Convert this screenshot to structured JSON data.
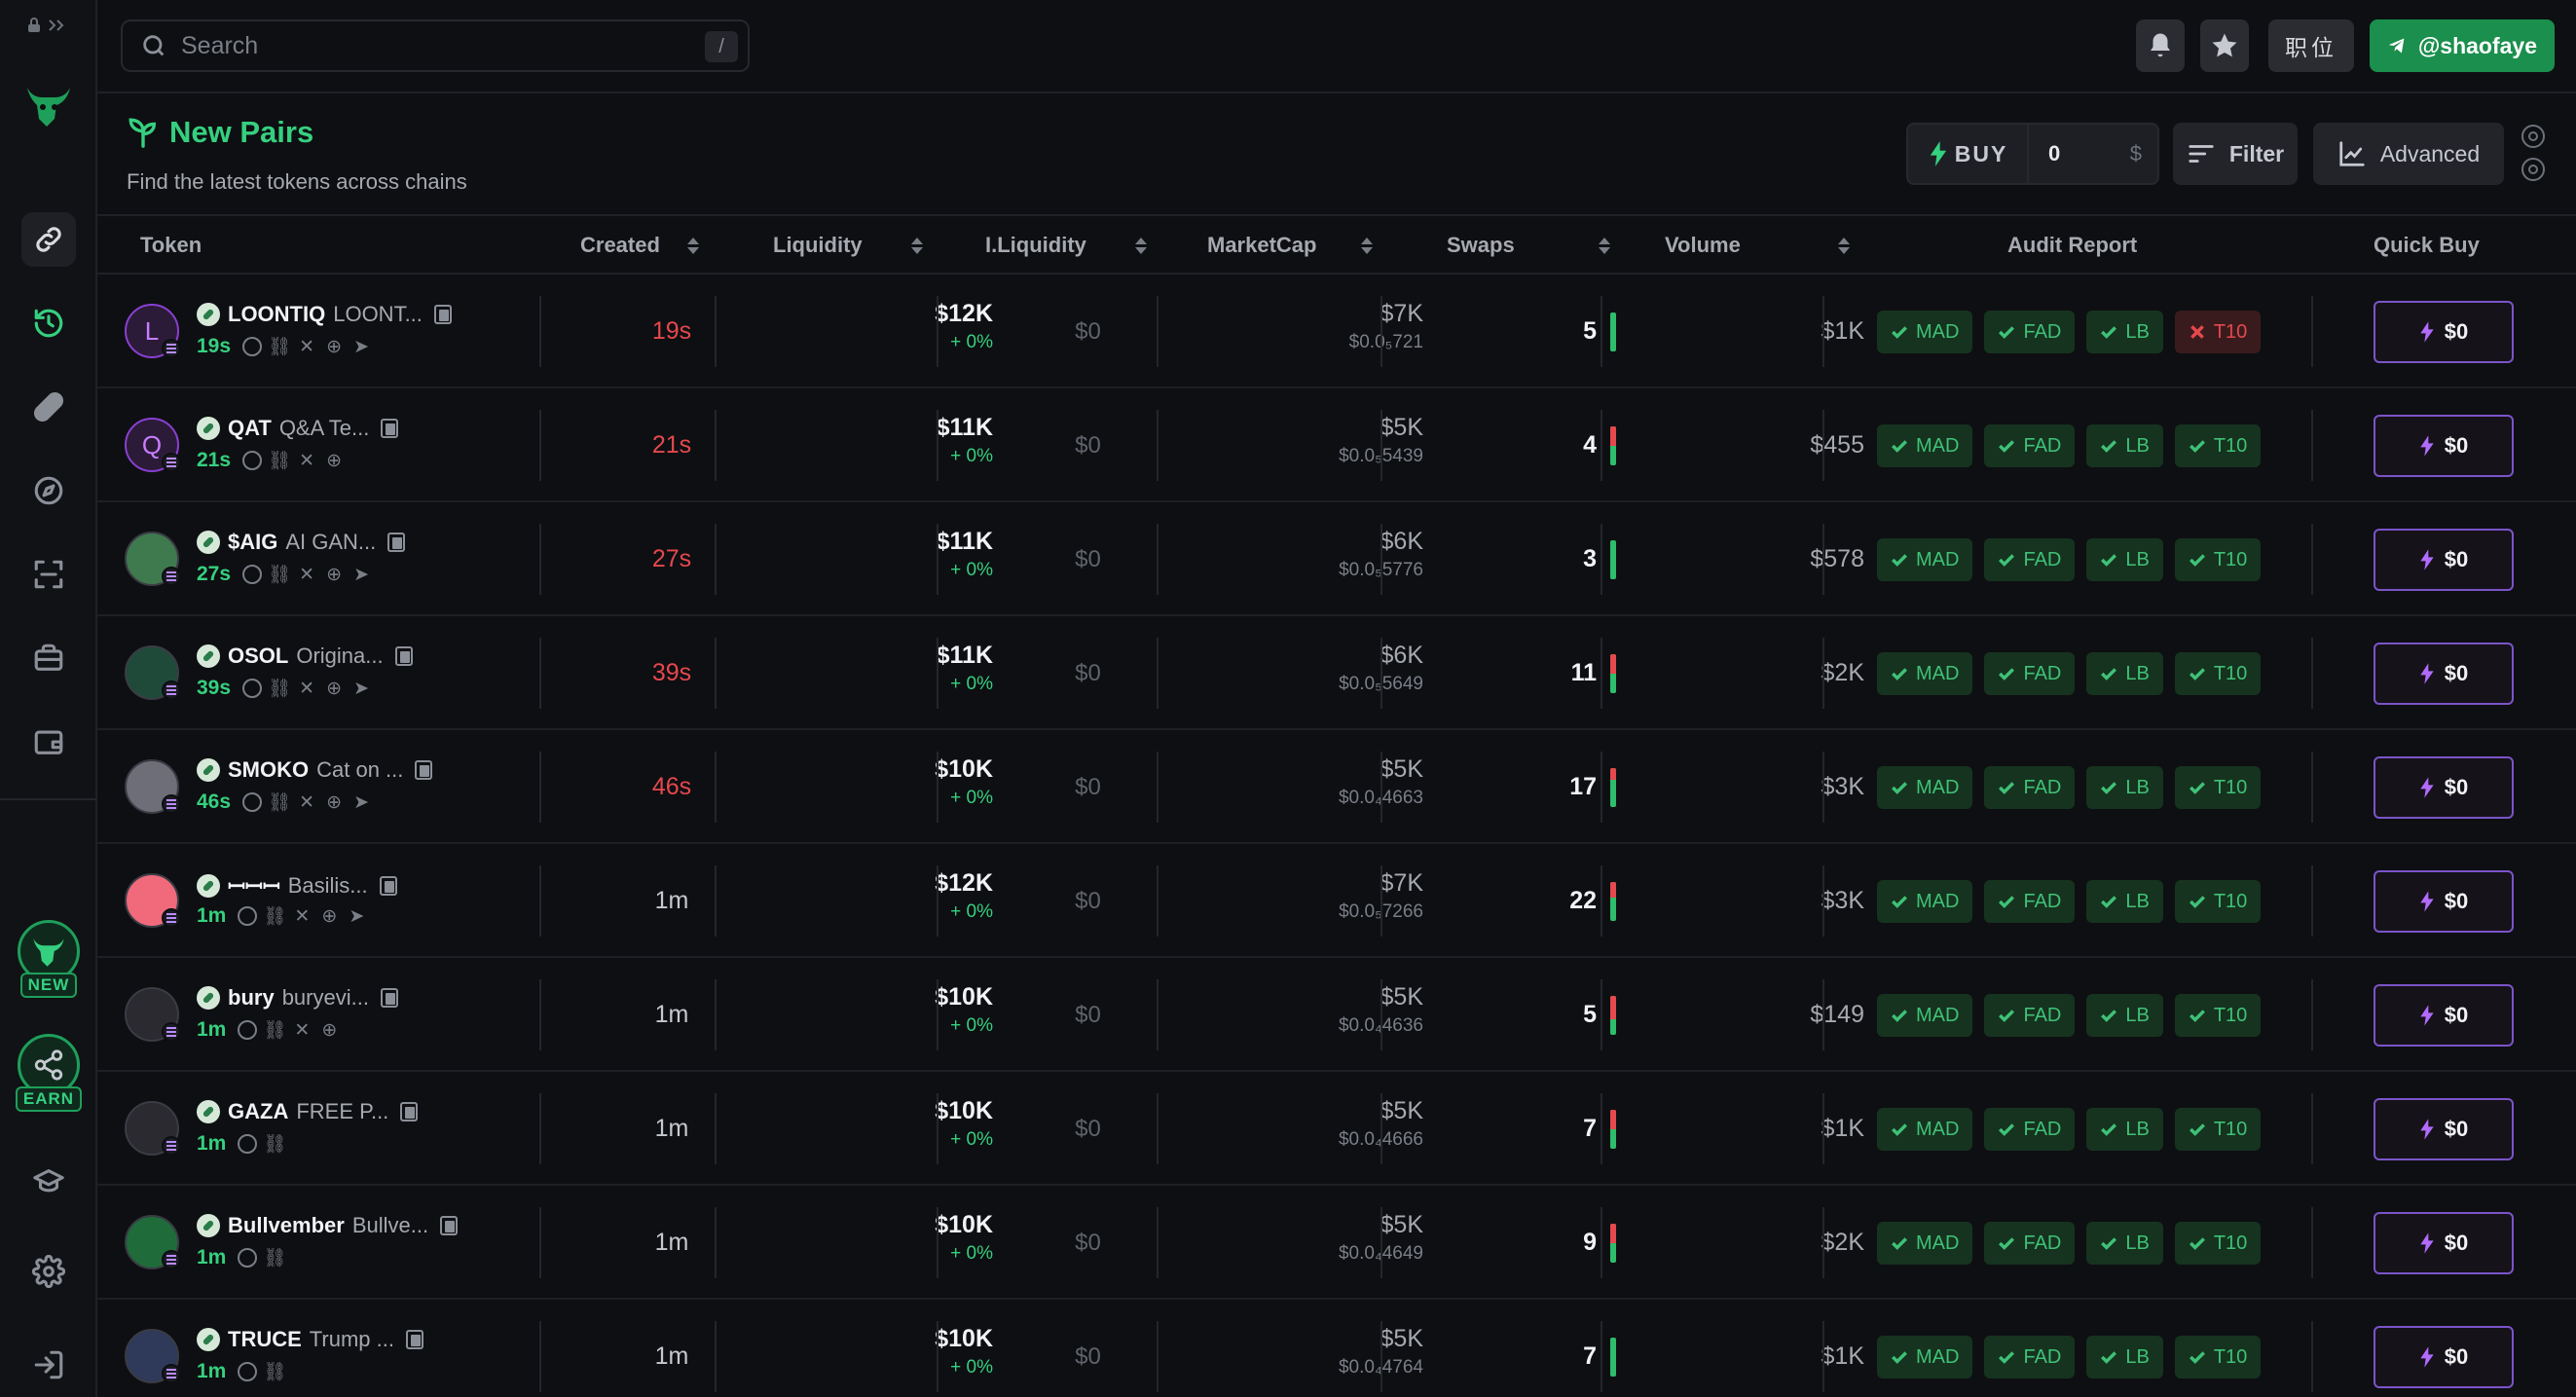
{
  "search": {
    "placeholder": "Search",
    "shortcut": "/"
  },
  "topbar": {
    "lang_label": "职位",
    "telegram_handle": "@shaofaye"
  },
  "page": {
    "title": "New Pairs",
    "subtitle": "Find the latest tokens across chains"
  },
  "controls": {
    "buy_label": "BUY",
    "buy_amount": "0",
    "currency": "$",
    "filter_label": "Filter",
    "advanced_label": "Advanced"
  },
  "sidebar": {
    "new_badge": "NEW",
    "earn_badge": "EARN"
  },
  "columns": {
    "token": "Token",
    "created": "Created",
    "liquidity": "Liquidity",
    "iliquidity": "I.Liquidity",
    "marketcap": "MarketCap",
    "swaps": "Swaps",
    "volume": "Volume",
    "audit": "Audit Report",
    "quickbuy": "Quick Buy"
  },
  "colors": {
    "accent": "#35d07f",
    "created_new": "#e5484d",
    "quick_buy_border": "#7b54c9"
  },
  "audit_labels": [
    "MAD",
    "FAD",
    "LB",
    "T10"
  ],
  "rows": [
    {
      "symbol": "LOONTIQ",
      "name": "LOONT...",
      "avatar_letter": "L",
      "avatar_bg": "#2b1b38",
      "age": "19s",
      "socials": [
        "target",
        "link",
        "x",
        "web",
        "tg"
      ],
      "created": "19s",
      "created_recent": true,
      "liquidity": "$12K",
      "liq_change": "+ 0%",
      "iliquidity": "$0",
      "marketcap": "$7K",
      "price": "$0.0₅721",
      "swaps": "5",
      "sell_ratio": 0.0,
      "volume": "$1K",
      "audit_fail": [
        3
      ],
      "quick_buy": "$0"
    },
    {
      "symbol": "QAT",
      "name": "Q&A Te...",
      "avatar_letter": "Q",
      "avatar_bg": "#2b1b38",
      "age": "21s",
      "socials": [
        "target",
        "link",
        "x",
        "web"
      ],
      "created": "21s",
      "created_recent": true,
      "liquidity": "$11K",
      "liq_change": "+ 0%",
      "iliquidity": "$0",
      "marketcap": "$5K",
      "price": "$0.0₅5439",
      "swaps": "4",
      "sell_ratio": 0.5,
      "volume": "$455",
      "audit_fail": [],
      "quick_buy": "$0"
    },
    {
      "symbol": "$AIG",
      "name": "AI GAN...",
      "avatar_letter": "",
      "avatar_bg": "#3f7a4f",
      "age": "27s",
      "socials": [
        "target",
        "link",
        "x",
        "web",
        "tg"
      ],
      "created": "27s",
      "created_recent": true,
      "liquidity": "$11K",
      "liq_change": "+ 0%",
      "iliquidity": "$0",
      "marketcap": "$6K",
      "price": "$0.0₅5776",
      "swaps": "3",
      "sell_ratio": 0.0,
      "volume": "$578",
      "audit_fail": [],
      "quick_buy": "$0"
    },
    {
      "symbol": "OSOL",
      "name": "Origina...",
      "avatar_letter": "",
      "avatar_bg": "#1f4a3a",
      "age": "39s",
      "socials": [
        "target",
        "link",
        "x",
        "web",
        "tg"
      ],
      "created": "39s",
      "created_recent": true,
      "liquidity": "$11K",
      "liq_change": "+ 0%",
      "iliquidity": "$0",
      "marketcap": "$6K",
      "price": "$0.0₅5649",
      "swaps": "11",
      "sell_ratio": 0.5,
      "volume": "$2K",
      "audit_fail": [],
      "quick_buy": "$0"
    },
    {
      "symbol": "SMOKO",
      "name": "Cat on ...",
      "avatar_letter": "",
      "avatar_bg": "#6e6e78",
      "age": "46s",
      "socials": [
        "target",
        "link",
        "x",
        "web",
        "tg"
      ],
      "created": "46s",
      "created_recent": true,
      "liquidity": "$10K",
      "liq_change": "+ 0%",
      "iliquidity": "$0",
      "marketcap": "$5K",
      "price": "$0.0₄4663",
      "swaps": "17",
      "sell_ratio": 0.3,
      "volume": "$3K",
      "audit_fail": [],
      "quick_buy": "$0"
    },
    {
      "symbol": "ꟷꟷꟷ",
      "name": "Basilis...",
      "avatar_letter": "",
      "avatar_bg": "#f06a7c",
      "age": "1m",
      "socials": [
        "target",
        "link",
        "x",
        "web",
        "tg"
      ],
      "created": "1m",
      "created_recent": false,
      "liquidity": "$12K",
      "liq_change": "+ 0%",
      "iliquidity": "$0",
      "marketcap": "$7K",
      "price": "$0.0₅7266",
      "swaps": "22",
      "sell_ratio": 0.4,
      "volume": "$3K",
      "audit_fail": [],
      "quick_buy": "$0"
    },
    {
      "symbol": "bury",
      "name": "buryevi...",
      "avatar_letter": "",
      "avatar_bg": "#2a2a30",
      "age": "1m",
      "socials": [
        "target",
        "link",
        "x",
        "web"
      ],
      "created": "1m",
      "created_recent": false,
      "liquidity": "$10K",
      "liq_change": "+ 0%",
      "iliquidity": "$0",
      "marketcap": "$5K",
      "price": "$0.0₄4636",
      "swaps": "5",
      "sell_ratio": 0.6,
      "volume": "$149",
      "audit_fail": [],
      "quick_buy": "$0"
    },
    {
      "symbol": "GAZA",
      "name": "FREE P...",
      "avatar_letter": "",
      "avatar_bg": "#2a2a30",
      "age": "1m",
      "socials": [
        "target",
        "link"
      ],
      "created": "1m",
      "created_recent": false,
      "liquidity": "$10K",
      "liq_change": "+ 0%",
      "iliquidity": "$0",
      "marketcap": "$5K",
      "price": "$0.0₄4666",
      "swaps": "7",
      "sell_ratio": 0.5,
      "volume": "$1K",
      "audit_fail": [],
      "quick_buy": "$0"
    },
    {
      "symbol": "Bullvember",
      "name": "Bullve...",
      "avatar_letter": "",
      "avatar_bg": "#1f6b3a",
      "age": "1m",
      "socials": [
        "target",
        "link"
      ],
      "created": "1m",
      "created_recent": false,
      "liquidity": "$10K",
      "liq_change": "+ 0%",
      "iliquidity": "$0",
      "marketcap": "$5K",
      "price": "$0.0₄4649",
      "swaps": "9",
      "sell_ratio": 0.5,
      "volume": "$2K",
      "audit_fail": [],
      "quick_buy": "$0"
    },
    {
      "symbol": "TRUCE",
      "name": "Trump ...",
      "avatar_letter": "",
      "avatar_bg": "#2f3a5a",
      "age": "1m",
      "socials": [
        "target",
        "link"
      ],
      "created": "1m",
      "created_recent": false,
      "liquidity": "$10K",
      "liq_change": "+ 0%",
      "iliquidity": "$0",
      "marketcap": "$5K",
      "price": "$0.0₄4764",
      "swaps": "7",
      "sell_ratio": 0.0,
      "volume": "$1K",
      "audit_fail": [],
      "quick_buy": "$0"
    }
  ]
}
